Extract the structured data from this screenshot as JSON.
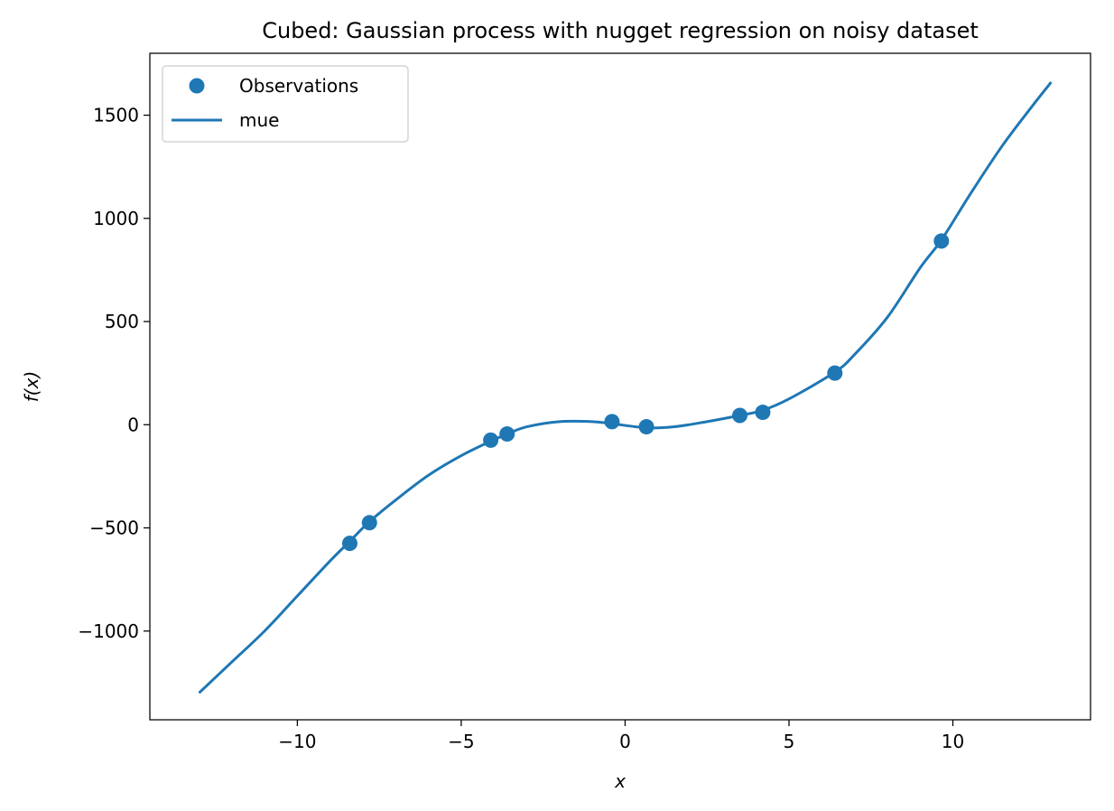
{
  "chart_data": {
    "type": "line",
    "title": "Cubed: Gaussian process with nugget regression on noisy dataset",
    "xlabel": "x",
    "ylabel": "f(x)",
    "xlim": [
      -14.5,
      14.2
    ],
    "ylim": [
      -1430,
      1800
    ],
    "xticks": [
      -10,
      -5,
      0,
      5,
      10
    ],
    "yticks": [
      -1000,
      -500,
      0,
      500,
      1000,
      1500
    ],
    "xtick_labels": [
      "−10",
      "−5",
      "0",
      "5",
      "10"
    ],
    "ytick_labels": [
      "−1000",
      "−500",
      "0",
      "500",
      "1000",
      "1500"
    ],
    "grid": false,
    "legend_position": "upper-left",
    "color": "#1f77b4",
    "series": [
      {
        "name": "Observations",
        "kind": "scatter",
        "x": [
          -8.4,
          -7.8,
          -4.1,
          -3.6,
          -0.4,
          0.65,
          3.5,
          4.2,
          6.4,
          9.65
        ],
        "y": [
          -575,
          -475,
          -75,
          -45,
          15,
          -10,
          45,
          60,
          250,
          890
        ]
      },
      {
        "name": "mue",
        "kind": "line",
        "x": [
          -13,
          -12,
          -11,
          -10,
          -9,
          -8.4,
          -7.8,
          -7,
          -6,
          -5,
          -4.1,
          -3.6,
          -3,
          -2,
          -1,
          -0.4,
          0.65,
          1.5,
          2.5,
          3.5,
          4.2,
          5,
          6.4,
          7,
          8,
          9,
          9.65,
          10.5,
          11.5,
          12.5,
          13
        ],
        "y": [
          -1300,
          -1150,
          -1000,
          -830,
          -660,
          -565,
          -470,
          -365,
          -245,
          -150,
          -80,
          -45,
          -10,
          15,
          15,
          5,
          -15,
          -10,
          15,
          45,
          70,
          125,
          255,
          340,
          520,
          760,
          895,
          1110,
          1350,
          1560,
          1660
        ]
      }
    ]
  }
}
